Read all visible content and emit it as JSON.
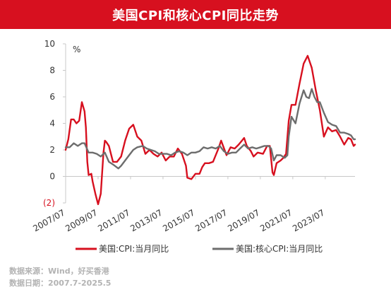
{
  "header": {
    "title": "美国CPI和核心CPI同比走势"
  },
  "footer": {
    "source": "数据来源：Wind，好买香港",
    "date_range": "数据日期：2007.7-2025.5"
  },
  "colors": {
    "title_bg": "#d7101f",
    "cpi": "#d7101f",
    "core": "#6d6d6d"
  },
  "chart_data": {
    "type": "line",
    "title": "美国CPI和核心CPI同比走势",
    "ylabel": "%",
    "xlabel": "",
    "ylim": [
      -2,
      10
    ],
    "xlim": [
      "2007-07",
      "2025-05"
    ],
    "y_ticks": [
      10,
      8,
      6,
      4,
      2,
      0,
      -2
    ],
    "y_tick_labels": [
      "10",
      "8",
      "6",
      "4",
      "2",
      "0",
      "(2)"
    ],
    "x_ticks": [
      "2007-07",
      "2009-07",
      "2011-07",
      "2013-07",
      "2015-07",
      "2017-07",
      "2019-07",
      "2021-07",
      "2023-07"
    ],
    "x_tick_labels": [
      "2007/07",
      "2009/07",
      "2011/07",
      "2013/07",
      "2015/07",
      "2017/07",
      "2019/07",
      "2021/07",
      "2023/07"
    ],
    "legend_position": "bottom",
    "grid": false,
    "series": [
      {
        "name": "美国:CPI:当月同比",
        "color": "#d7101f",
        "points": [
          [
            "2007-07",
            2.0
          ],
          [
            "2007-09",
            2.8
          ],
          [
            "2007-11",
            4.3
          ],
          [
            "2008-01",
            4.3
          ],
          [
            "2008-03",
            4.0
          ],
          [
            "2008-05",
            4.2
          ],
          [
            "2008-07",
            5.6
          ],
          [
            "2008-09",
            4.9
          ],
          [
            "2008-10",
            3.7
          ],
          [
            "2008-11",
            1.1
          ],
          [
            "2008-12",
            0.1
          ],
          [
            "2009-02",
            0.2
          ],
          [
            "2009-03",
            -0.4
          ],
          [
            "2009-05",
            -1.3
          ],
          [
            "2009-07",
            -2.1
          ],
          [
            "2009-09",
            -1.3
          ],
          [
            "2009-11",
            1.8
          ],
          [
            "2009-12",
            2.7
          ],
          [
            "2010-01",
            2.6
          ],
          [
            "2010-03",
            2.3
          ],
          [
            "2010-06",
            1.1
          ],
          [
            "2010-09",
            1.1
          ],
          [
            "2010-12",
            1.5
          ],
          [
            "2011-03",
            2.7
          ],
          [
            "2011-06",
            3.6
          ],
          [
            "2011-09",
            3.9
          ],
          [
            "2011-12",
            3.0
          ],
          [
            "2012-03",
            2.7
          ],
          [
            "2012-06",
            1.7
          ],
          [
            "2012-09",
            2.0
          ],
          [
            "2012-12",
            1.7
          ],
          [
            "2013-03",
            1.5
          ],
          [
            "2013-06",
            1.8
          ],
          [
            "2013-09",
            1.2
          ],
          [
            "2013-12",
            1.5
          ],
          [
            "2014-03",
            1.5
          ],
          [
            "2014-06",
            2.1
          ],
          [
            "2014-09",
            1.7
          ],
          [
            "2014-12",
            0.8
          ],
          [
            "2015-01",
            -0.1
          ],
          [
            "2015-04",
            -0.2
          ],
          [
            "2015-07",
            0.2
          ],
          [
            "2015-10",
            0.2
          ],
          [
            "2015-12",
            0.7
          ],
          [
            "2016-02",
            1.0
          ],
          [
            "2016-05",
            1.0
          ],
          [
            "2016-08",
            1.1
          ],
          [
            "2016-12",
            2.1
          ],
          [
            "2017-02",
            2.7
          ],
          [
            "2017-06",
            1.6
          ],
          [
            "2017-09",
            2.2
          ],
          [
            "2017-12",
            2.1
          ],
          [
            "2018-03",
            2.4
          ],
          [
            "2018-07",
            2.9
          ],
          [
            "2018-09",
            2.3
          ],
          [
            "2018-12",
            1.9
          ],
          [
            "2019-02",
            1.5
          ],
          [
            "2019-05",
            1.8
          ],
          [
            "2019-09",
            1.7
          ],
          [
            "2019-12",
            2.3
          ],
          [
            "2020-02",
            2.3
          ],
          [
            "2020-04",
            0.3
          ],
          [
            "2020-05",
            0.1
          ],
          [
            "2020-07",
            1.0
          ],
          [
            "2020-10",
            1.2
          ],
          [
            "2020-12",
            1.4
          ],
          [
            "2021-02",
            1.7
          ],
          [
            "2021-04",
            4.2
          ],
          [
            "2021-06",
            5.4
          ],
          [
            "2021-09",
            5.4
          ],
          [
            "2021-12",
            7.0
          ],
          [
            "2022-03",
            8.5
          ],
          [
            "2022-06",
            9.1
          ],
          [
            "2022-09",
            8.2
          ],
          [
            "2022-12",
            6.5
          ],
          [
            "2023-03",
            5.0
          ],
          [
            "2023-06",
            3.0
          ],
          [
            "2023-09",
            3.7
          ],
          [
            "2023-12",
            3.4
          ],
          [
            "2024-03",
            3.5
          ],
          [
            "2024-06",
            3.0
          ],
          [
            "2024-09",
            2.4
          ],
          [
            "2024-12",
            2.9
          ],
          [
            "2025-02",
            2.8
          ],
          [
            "2025-04",
            2.3
          ],
          [
            "2025-05",
            2.4
          ]
        ]
      },
      {
        "name": "美国:核心CPI:当月同比",
        "color": "#6d6d6d",
        "points": [
          [
            "2007-07",
            2.2
          ],
          [
            "2007-10",
            2.2
          ],
          [
            "2008-01",
            2.5
          ],
          [
            "2008-04",
            2.3
          ],
          [
            "2008-07",
            2.5
          ],
          [
            "2008-09",
            2.5
          ],
          [
            "2008-12",
            1.8
          ],
          [
            "2009-03",
            1.8
          ],
          [
            "2009-06",
            1.7
          ],
          [
            "2009-09",
            1.5
          ],
          [
            "2009-12",
            1.8
          ],
          [
            "2010-03",
            1.1
          ],
          [
            "2010-06",
            0.9
          ],
          [
            "2010-10",
            0.6
          ],
          [
            "2010-12",
            0.8
          ],
          [
            "2011-03",
            1.2
          ],
          [
            "2011-06",
            1.6
          ],
          [
            "2011-09",
            2.0
          ],
          [
            "2011-12",
            2.2
          ],
          [
            "2012-04",
            2.3
          ],
          [
            "2012-07",
            2.1
          ],
          [
            "2012-10",
            2.0
          ],
          [
            "2013-01",
            1.9
          ],
          [
            "2013-04",
            1.7
          ],
          [
            "2013-07",
            1.7
          ],
          [
            "2013-10",
            1.7
          ],
          [
            "2014-01",
            1.6
          ],
          [
            "2014-04",
            1.8
          ],
          [
            "2014-07",
            1.9
          ],
          [
            "2014-10",
            1.8
          ],
          [
            "2015-01",
            1.6
          ],
          [
            "2015-04",
            1.8
          ],
          [
            "2015-07",
            1.8
          ],
          [
            "2015-10",
            1.9
          ],
          [
            "2016-01",
            2.2
          ],
          [
            "2016-04",
            2.1
          ],
          [
            "2016-07",
            2.2
          ],
          [
            "2016-10",
            2.1
          ],
          [
            "2017-01",
            2.3
          ],
          [
            "2017-04",
            1.9
          ],
          [
            "2017-07",
            1.7
          ],
          [
            "2017-10",
            1.8
          ],
          [
            "2018-01",
            1.8
          ],
          [
            "2018-04",
            2.1
          ],
          [
            "2018-07",
            2.4
          ],
          [
            "2018-10",
            2.1
          ],
          [
            "2019-01",
            2.2
          ],
          [
            "2019-04",
            2.1
          ],
          [
            "2019-07",
            2.2
          ],
          [
            "2019-10",
            2.3
          ],
          [
            "2020-01",
            2.3
          ],
          [
            "2020-03",
            2.1
          ],
          [
            "2020-05",
            1.2
          ],
          [
            "2020-07",
            1.6
          ],
          [
            "2020-10",
            1.6
          ],
          [
            "2021-01",
            1.4
          ],
          [
            "2021-03",
            1.6
          ],
          [
            "2021-04",
            3.0
          ],
          [
            "2021-06",
            4.5
          ],
          [
            "2021-09",
            4.0
          ],
          [
            "2021-12",
            5.5
          ],
          [
            "2022-03",
            6.5
          ],
          [
            "2022-05",
            6.0
          ],
          [
            "2022-07",
            5.9
          ],
          [
            "2022-09",
            6.6
          ],
          [
            "2022-11",
            6.0
          ],
          [
            "2023-01",
            5.6
          ],
          [
            "2023-03",
            5.6
          ],
          [
            "2023-06",
            4.8
          ],
          [
            "2023-09",
            4.1
          ],
          [
            "2023-12",
            3.9
          ],
          [
            "2024-03",
            3.8
          ],
          [
            "2024-06",
            3.3
          ],
          [
            "2024-09",
            3.3
          ],
          [
            "2024-12",
            3.2
          ],
          [
            "2025-02",
            3.1
          ],
          [
            "2025-04",
            2.8
          ],
          [
            "2025-05",
            2.8
          ]
        ]
      }
    ]
  }
}
